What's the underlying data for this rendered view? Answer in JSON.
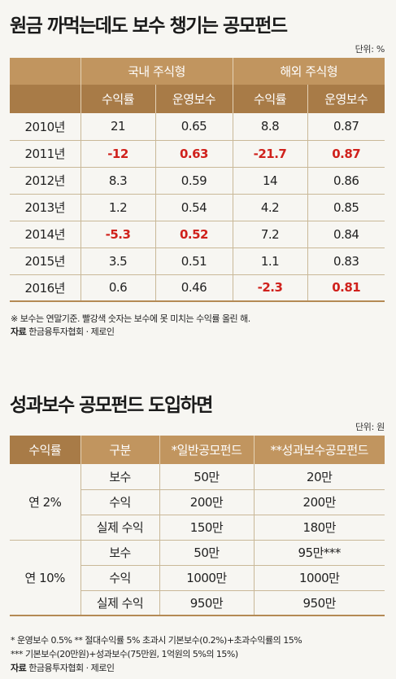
{
  "section1": {
    "title": "원금 까먹는데도 보수 챙기는 공모펀드",
    "unit": "단위: %",
    "group_headers": [
      "국내 주식형",
      "해외 주식형"
    ],
    "sub_headers": [
      "수익률",
      "운영보수",
      "수익률",
      "운영보수"
    ],
    "rows": [
      {
        "year": "2010년",
        "dom_return": "21",
        "dom_fee": "0.65",
        "for_return": "8.8",
        "for_fee": "0.87"
      },
      {
        "year": "2011년",
        "dom_return": "-12",
        "dom_fee": "0.63",
        "for_return": "-21.7",
        "for_fee": "0.87"
      },
      {
        "year": "2012년",
        "dom_return": "8.3",
        "dom_fee": "0.59",
        "for_return": "14",
        "for_fee": "0.86"
      },
      {
        "year": "2013년",
        "dom_return": "1.2",
        "dom_fee": "0.54",
        "for_return": "4.2",
        "for_fee": "0.85"
      },
      {
        "year": "2014년",
        "dom_return": "-5.3",
        "dom_fee": "0.52",
        "for_return": "7.2",
        "for_fee": "0.84"
      },
      {
        "year": "2015년",
        "dom_return": "3.5",
        "dom_fee": "0.51",
        "for_return": "1.1",
        "for_fee": "0.83"
      },
      {
        "year": "2016년",
        "dom_return": "0.6",
        "dom_fee": "0.46",
        "for_return": "-2.3",
        "for_fee": "0.81"
      }
    ],
    "highlight_color": "#d0211c",
    "footnote": "※ 보수는 연말기준. 빨강색 숫자는 보수에 못 미치는 수익률 올린 해.",
    "source_label": "자료",
    "source_text": "한금융투자협회 · 제로인"
  },
  "section2": {
    "title": "성과보수 공모펀드 도입하면",
    "unit": "단위: 원",
    "headers": [
      "수익률",
      "구분",
      "*일반공모펀드",
      "**성과보수공모펀드"
    ],
    "groups": [
      {
        "label": "연 2%",
        "rows": [
          {
            "category": "보수",
            "general": "50만",
            "performance": "20만"
          },
          {
            "category": "수익",
            "general": "200만",
            "performance": "200만"
          },
          {
            "category": "실제 수익",
            "general": "150만",
            "performance": "180만"
          }
        ]
      },
      {
        "label": "연 10%",
        "rows": [
          {
            "category": "보수",
            "general": "50만",
            "performance": "95만***"
          },
          {
            "category": "수익",
            "general": "1000만",
            "performance": "1000만"
          },
          {
            "category": "실제 수익",
            "general": "950만",
            "performance": "950만"
          }
        ]
      }
    ],
    "footnote1": "* 운영보수 0.5%   ** 절대수익률 5% 초과시 기본보수(0.2%)+초과수익률의 15%",
    "footnote2": "*** 기본보수(20만원)+성과보수(75만원, 1억원의 5%의 15%)",
    "source_label": "자료",
    "source_text": "한금융투자협회 · 제로인"
  },
  "colors": {
    "header_light": "#c1955f",
    "header_dark": "#a87b47",
    "negative": "#d0211c",
    "background": "#f7f6f2"
  }
}
